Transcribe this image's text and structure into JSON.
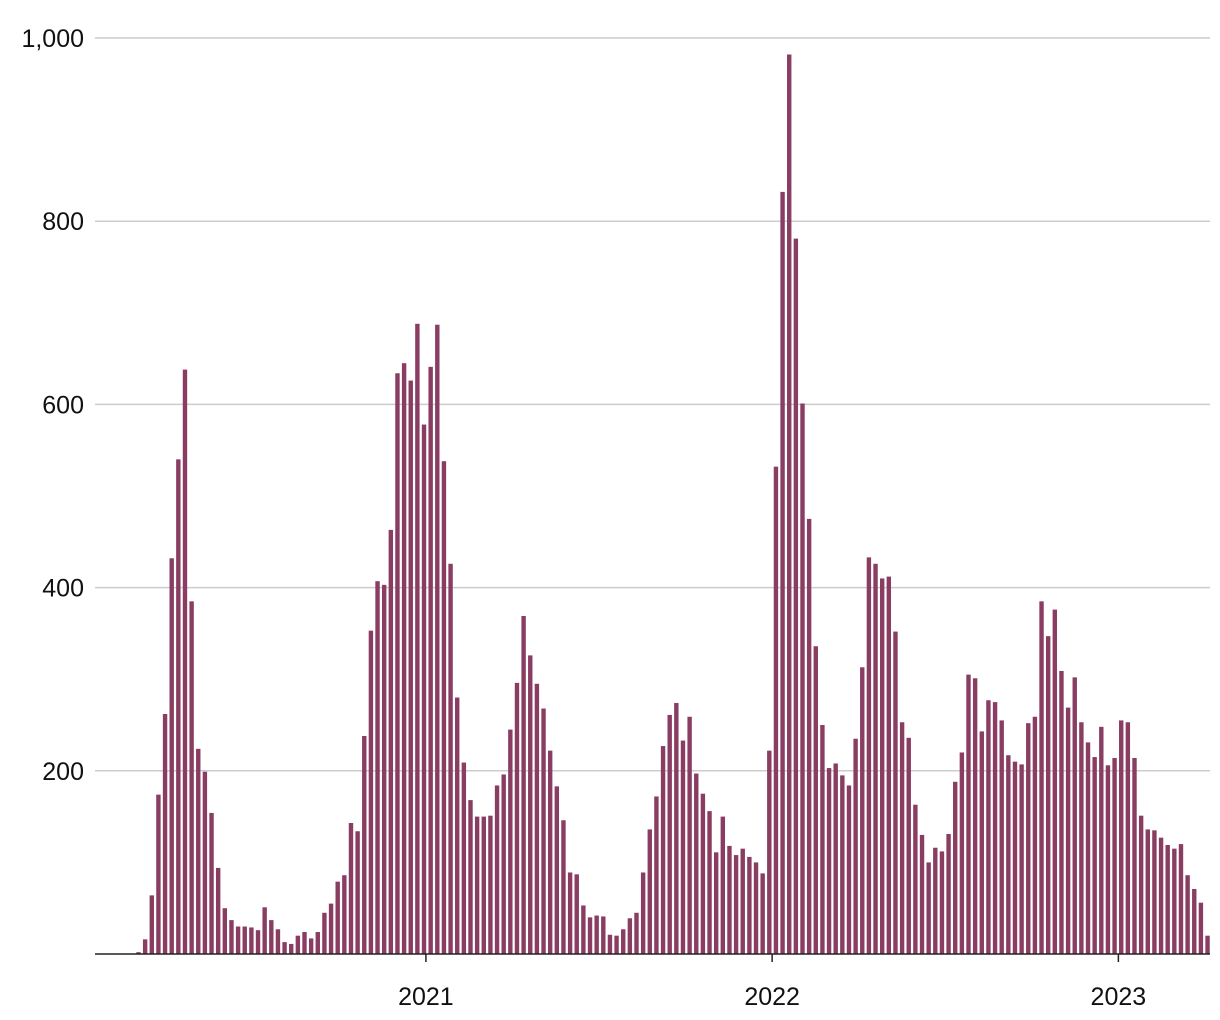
{
  "chart_data": {
    "type": "bar",
    "title": "",
    "xlabel": "",
    "ylabel": "",
    "ylim": [
      0,
      1000
    ],
    "yticks": [
      200,
      400,
      600,
      800,
      1000
    ],
    "ytick_labels": [
      "200",
      "400",
      "600",
      "800",
      "1,000"
    ],
    "xticks": [
      {
        "label": "2021",
        "date": "2021-01-01"
      },
      {
        "label": "2022",
        "date": "2022-01-01"
      },
      {
        "label": "2023",
        "date": "2023-01-01"
      }
    ],
    "grid": true,
    "bar_color": "#8a3d62",
    "first_week": "2020-03-04",
    "values": [
      2,
      16,
      64,
      174,
      262,
      432,
      540,
      638,
      385,
      224,
      199,
      154,
      94,
      50,
      37,
      30,
      30,
      29,
      26,
      51,
      37,
      27,
      13,
      11,
      20,
      24,
      17,
      24,
      45,
      55,
      79,
      86,
      143,
      134,
      238,
      353,
      407,
      403,
      463,
      634,
      645,
      626,
      688,
      578,
      641,
      687,
      538,
      426,
      280,
      209,
      168,
      150,
      150,
      151,
      184,
      196,
      245,
      296,
      369,
      326,
      295,
      268,
      222,
      183,
      146,
      89,
      87,
      53,
      40,
      42,
      41,
      21,
      20,
      27,
      39,
      45,
      89,
      136,
      172,
      227,
      261,
      274,
      233,
      259,
      197,
      175,
      156,
      111,
      150,
      118,
      108,
      115,
      106,
      100,
      88,
      222,
      532,
      832,
      982,
      781,
      601,
      475,
      336,
      250,
      203,
      208,
      195,
      184,
      235,
      313,
      433,
      426,
      410,
      412,
      352,
      253,
      236,
      163,
      130,
      100,
      116,
      112,
      131,
      188,
      220,
      305,
      301,
      243,
      277,
      275,
      255,
      217,
      210,
      207,
      252,
      259,
      385,
      347,
      376,
      309,
      269,
      302,
      253,
      231,
      215,
      248,
      206,
      214,
      255,
      253,
      214,
      151,
      136,
      135,
      127,
      119,
      115,
      120,
      86,
      71,
      56,
      20
    ]
  }
}
